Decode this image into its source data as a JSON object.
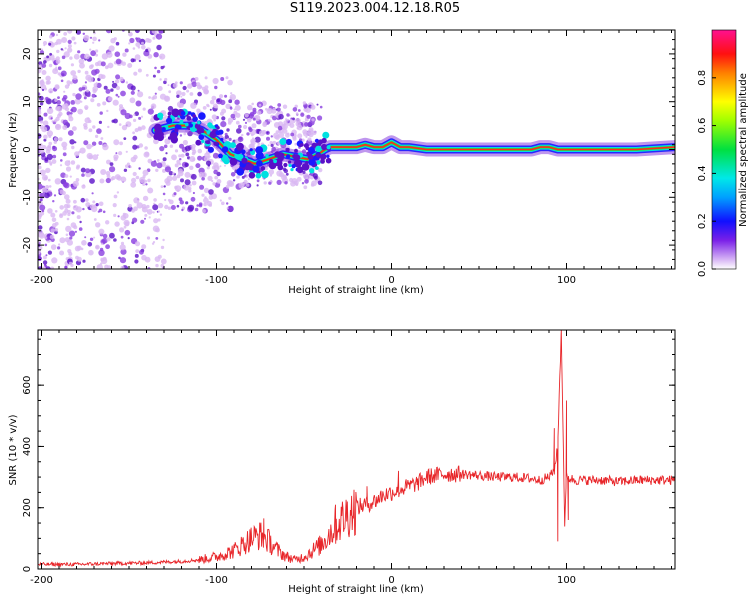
{
  "title": "S119.2023.004.12.18.R05",
  "colors": {
    "snr_line": "#e8262a",
    "dot_light": "#d9b8f2",
    "dot_mid": "#8a3fe0",
    "dot_dark": "#5a10c8",
    "track_red": "#ff2a1a",
    "track_green": "#22dd44",
    "track_cyan": "#00e0e0",
    "track_blue": "#1a1aff"
  },
  "chart_data": [
    {
      "type": "heatmap",
      "xlabel": "Height of straight line (km)",
      "ylabel": "Frequency (Hz)",
      "xlim": [
        -202,
        162
      ],
      "ylim": [
        -25,
        25
      ],
      "x_ticks": [
        -200,
        -100,
        0,
        100
      ],
      "y_ticks": [
        -20,
        -10,
        0,
        10,
        20
      ],
      "colorbar": {
        "label": "Normalized spectral amplitude",
        "range": [
          0,
          1
        ],
        "ticks": [
          0.0,
          0.2,
          0.4,
          0.6,
          0.8
        ],
        "colormap": "rainbow"
      },
      "noise_region": {
        "x": [
          -202,
          -40
        ],
        "freq_spread": [
          -25,
          25
        ]
      },
      "track": {
        "x": [
          -135,
          -125,
          -115,
          -108,
          -100,
          -92,
          -85,
          -78,
          -70,
          -62,
          -55,
          -48,
          -42,
          -38,
          -35,
          -30,
          -25,
          -20,
          -15,
          -10,
          -5,
          0,
          5,
          10,
          20,
          40,
          60,
          80,
          85,
          90,
          95,
          100,
          120,
          140,
          162
        ],
        "freq": [
          4,
          5,
          5,
          4,
          2,
          -1,
          -2,
          -3,
          -2,
          -1,
          -1.5,
          -2,
          -1,
          0,
          0.5,
          0.5,
          0.5,
          0.5,
          1,
          0.5,
          0.5,
          1.5,
          0.5,
          0.5,
          0,
          0,
          0,
          0,
          0.5,
          0.5,
          0,
          0,
          0,
          0,
          0.5
        ]
      }
    },
    {
      "type": "line",
      "xlabel": "Height of straight line (km)",
      "ylabel": "SNR (10 * v/v)",
      "xlim": [
        -202,
        162
      ],
      "ylim": [
        0,
        780
      ],
      "x_ticks": [
        -200,
        -100,
        0,
        100
      ],
      "y_ticks": [
        0,
        200,
        400,
        600
      ],
      "series": [
        {
          "x": [
            -202,
            -180,
            -160,
            -140,
            -120,
            -110,
            -100,
            -90,
            -85,
            -80,
            -75,
            -70,
            -65,
            -60,
            -55,
            -50,
            -45,
            -40,
            -35,
            -30,
            -25,
            -20,
            -15,
            -10,
            -5,
            0,
            5,
            10,
            15,
            20,
            30,
            40,
            50,
            60,
            70,
            80,
            85,
            90,
            93,
            95,
            97,
            99,
            100,
            105,
            110,
            120,
            130,
            140,
            150,
            162
          ],
          "y": [
            15,
            15,
            18,
            20,
            25,
            30,
            40,
            60,
            80,
            100,
            110,
            90,
            60,
            40,
            30,
            40,
            60,
            80,
            120,
            150,
            180,
            200,
            210,
            220,
            240,
            250,
            260,
            270,
            280,
            300,
            310,
            310,
            305,
            300,
            300,
            295,
            290,
            300,
            320,
            400,
            780,
            150,
            300,
            290,
            290,
            290,
            285,
            290,
            290,
            290
          ],
          "spikes": [
            {
              "x": -73,
              "y": 165
            },
            {
              "x": -32,
              "y": 210
            },
            {
              "x": -14,
              "y": 270
            },
            {
              "x": 4,
              "y": 320
            },
            {
              "x": 93,
              "y": 460
            },
            {
              "x": 95,
              "y": 90
            },
            {
              "x": 97,
              "y": 780
            },
            {
              "x": 100,
              "y": 550
            },
            {
              "x": 101,
              "y": 160
            }
          ]
        }
      ]
    }
  ]
}
